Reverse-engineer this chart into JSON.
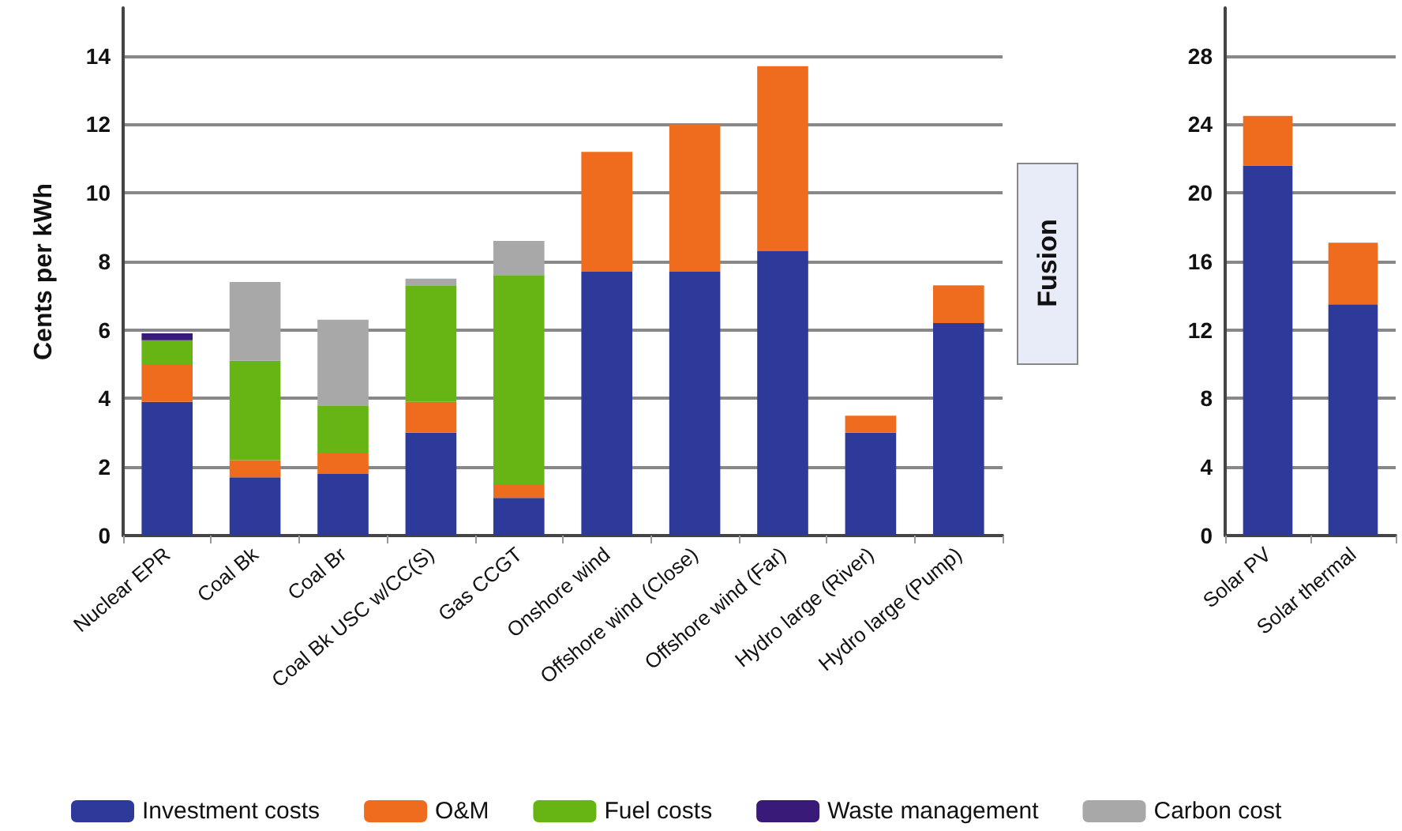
{
  "chart_data": [
    {
      "type": "bar",
      "stacked": true,
      "ylabel": "Cents per kWh",
      "categories": [
        "Nuclear EPR",
        "Coal Bk",
        "Coal Br",
        "Coal Bk USC w/CC(S)",
        "Gas CCGT",
        "Onshore wind",
        "Offshore wind (Close)",
        "Offshore wind (Far)",
        "Hydro large (River)",
        "Hydro large (Pump)"
      ],
      "series": [
        {
          "name": "Investment costs",
          "color": "#2e3a9a",
          "values": [
            3.9,
            1.7,
            1.8,
            3.0,
            1.1,
            7.7,
            7.7,
            8.3,
            3.0,
            6.2
          ]
        },
        {
          "name": "O&M",
          "color": "#ef6c1e",
          "values": [
            1.1,
            0.5,
            0.6,
            0.9,
            0.4,
            3.5,
            4.3,
            5.4,
            0.5,
            1.1
          ]
        },
        {
          "name": "Fuel costs",
          "color": "#67b514",
          "values": [
            0.7,
            2.9,
            1.4,
            3.4,
            6.1,
            null,
            null,
            null,
            null,
            null
          ]
        },
        {
          "name": "Waste management",
          "color": "#3a1a78",
          "values": [
            0.2,
            null,
            null,
            null,
            null,
            null,
            null,
            null,
            null,
            null
          ]
        },
        {
          "name": "Carbon cost",
          "color": "#a8a8a8",
          "values": [
            null,
            2.3,
            2.5,
            0.2,
            1.0,
            null,
            null,
            null,
            null,
            null
          ]
        }
      ],
      "ylim": [
        0,
        15.4
      ],
      "yticks": [
        0,
        2,
        4,
        6,
        8,
        10,
        12,
        14
      ],
      "grid": "y",
      "legend": "bottom",
      "annotations": [
        "Fusion"
      ]
    },
    {
      "type": "bar",
      "stacked": true,
      "categories": [
        "Solar PV",
        "Solar thermal"
      ],
      "series": [
        {
          "color": "#2e3a9a",
          "values": [
            21.6,
            13.5
          ]
        },
        {
          "color": "#ef6c1e",
          "values": [
            2.9,
            3.6
          ]
        }
      ],
      "ylim": [
        0,
        30.8
      ],
      "yticks": [
        0,
        4,
        8,
        12,
        16,
        20,
        24,
        28
      ],
      "grid": "y",
      "legend": false
    }
  ]
}
